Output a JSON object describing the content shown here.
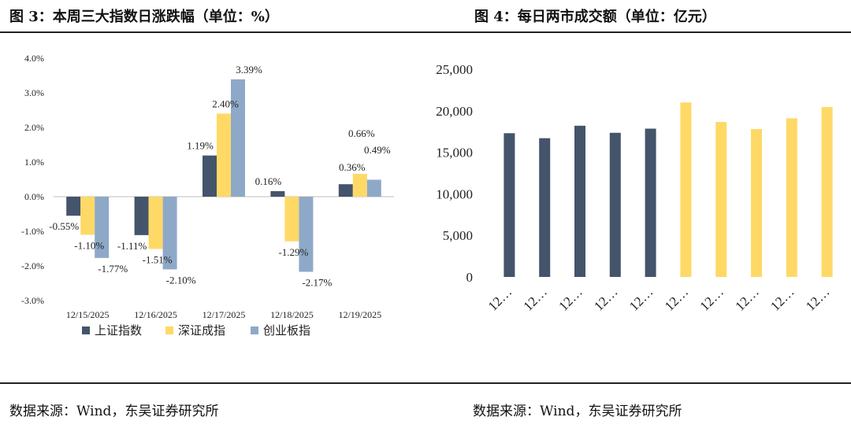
{
  "figure_left": {
    "title": "图 3：本周三大指数日涨跌幅（单位：%）",
    "source": "数据来源：Wind，东吴证券研究所"
  },
  "figure_right": {
    "title": "图 4：每日两市成交额（单位：亿元）",
    "source": "数据来源：Wind，东吴证券研究所"
  },
  "colors": {
    "navy": "#44546A",
    "yellow": "#FFD966",
    "steel": "#8EA9C8",
    "axis": "#bfbfbf"
  },
  "chart_data": [
    {
      "type": "bar",
      "title": "本周三大指数日涨跌幅（单位：%）",
      "categories": [
        "12/15/2025",
        "12/16/2025",
        "12/17/2025",
        "12/18/2025",
        "12/19/2025"
      ],
      "series": [
        {
          "name": "上证指数",
          "values": [
            -0.55,
            -1.11,
            1.19,
            0.16,
            0.36
          ],
          "labels": [
            "-0.55%",
            "-1.11%",
            "1.19%",
            "0.16%",
            "0.36%"
          ]
        },
        {
          "name": "深证成指",
          "values": [
            -1.1,
            -1.51,
            2.4,
            -1.29,
            0.66
          ],
          "labels": [
            "-1.10%",
            "-1.51%",
            "2.40%",
            "-1.29%",
            "0.66%"
          ]
        },
        {
          "name": "创业板指",
          "values": [
            -1.77,
            -2.1,
            3.39,
            -2.17,
            0.49
          ],
          "labels": [
            "-1.77%",
            "-2.10%",
            "3.39%",
            "-2.17%",
            "0.49%"
          ]
        }
      ],
      "ylim": [
        -3.0,
        4.0
      ],
      "yticks": [
        4.0,
        3.0,
        2.0,
        1.0,
        0.0,
        -1.0,
        -2.0,
        -3.0
      ],
      "ytick_labels": [
        "4.0%",
        "3.0%",
        "2.0%",
        "1.0%",
        "0.0%",
        "-1.0%",
        "-2.0%",
        "-3.0%"
      ],
      "legend": [
        "上证指数",
        "深证成指",
        "创业板指"
      ],
      "legend_position": "bottom"
    },
    {
      "type": "bar",
      "title": "每日两市成交额（单位：亿元）",
      "categories": [
        "12…",
        "12…",
        "12…",
        "12…",
        "12…",
        "12…",
        "12…",
        "12…",
        "12…",
        "12…"
      ],
      "values": [
        17300,
        16700,
        18200,
        17350,
        17850,
        21000,
        18650,
        17800,
        19100,
        20450
      ],
      "bar_colors": [
        "navy",
        "navy",
        "navy",
        "navy",
        "navy",
        "yellow",
        "yellow",
        "yellow",
        "yellow",
        "yellow"
      ],
      "ylim": [
        0,
        25000
      ],
      "yticks": [
        0,
        5000,
        10000,
        15000,
        20000,
        25000
      ],
      "ytick_labels": [
        "0",
        "5,000",
        "10,000",
        "15,000",
        "20,000",
        "25,000"
      ],
      "grid": false
    }
  ]
}
